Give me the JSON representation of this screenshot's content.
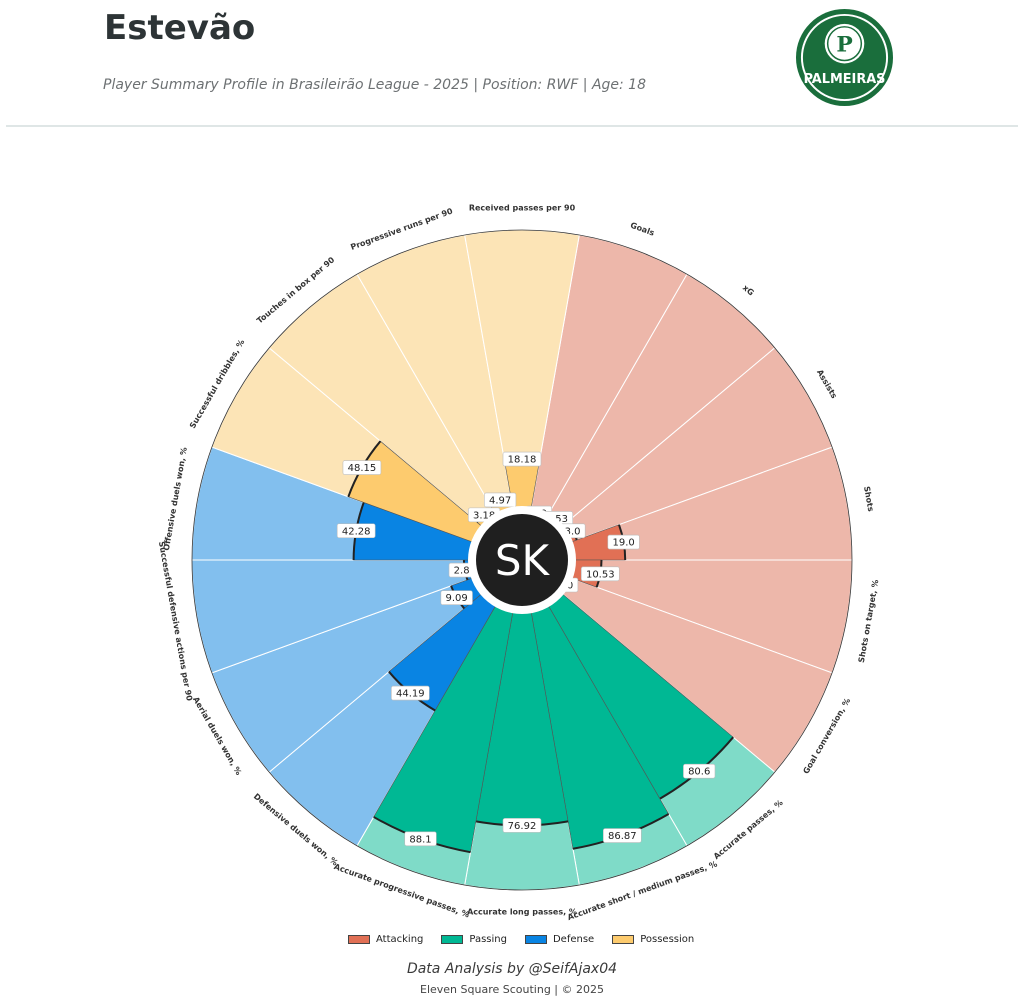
{
  "header": {
    "player_name": "Estevão",
    "subtitle": "Player Summary Profile in Brasileirão League - 2025 | Position: RWF | Age: 18"
  },
  "logo": {
    "name": "palmeiras-crest-icon",
    "text": "PALMEIRAS",
    "letter": "P",
    "color": "#1a6e3c"
  },
  "center_badge": {
    "text": "SK"
  },
  "chart_data": {
    "type": "polar-bar",
    "max_value": 100,
    "categories": [
      {
        "label": "Goals",
        "value": 0.0,
        "group": "Attacking"
      },
      {
        "label": "xG",
        "value": 1.53,
        "group": "Attacking"
      },
      {
        "label": "Assists",
        "value": 3.0,
        "group": "Attacking"
      },
      {
        "label": "Shots",
        "value": 19.0,
        "group": "Attacking"
      },
      {
        "label": "Shots on target, %",
        "value": 10.53,
        "group": "Attacking"
      },
      {
        "label": "Goal conversion, %",
        "value": 0.0,
        "group": "Attacking"
      },
      {
        "label": "Accurate passes, %",
        "value": 80.6,
        "group": "Passing"
      },
      {
        "label": "Accurate short / medium passes, %",
        "value": 86.87,
        "group": "Passing"
      },
      {
        "label": "Accurate long passes, %",
        "value": 76.92,
        "group": "Passing"
      },
      {
        "label": "Accurate progressive passes, %",
        "value": 88.1,
        "group": "Passing"
      },
      {
        "label": "Defensive duels won, %",
        "value": 44.19,
        "group": "Defense"
      },
      {
        "label": "Aerial duels won, %",
        "value": 9.09,
        "group": "Defense"
      },
      {
        "label": "Successful defensive actions per 90",
        "value": 2.88,
        "group": "Defense"
      },
      {
        "label": "Offensive duels won, %",
        "value": 42.28,
        "group": "Defense"
      },
      {
        "label": "Successful dribbles, %",
        "value": 48.15,
        "group": "Possession"
      },
      {
        "label": "Touches in box per 90",
        "value": 3.18,
        "group": "Possession"
      },
      {
        "label": "Progressive runs per 90",
        "value": 4.97,
        "group": "Possession"
      },
      {
        "label": "Received passes per 90",
        "value": 18.18,
        "group": "Possession"
      }
    ],
    "groups": [
      {
        "name": "Attacking",
        "color": "#e17055",
        "light": "#edb7aa"
      },
      {
        "name": "Passing",
        "color": "#00b894",
        "light": "#7fdbc8"
      },
      {
        "name": "Defense",
        "color": "#0984e3",
        "light": "#82bfee"
      },
      {
        "name": "Possession",
        "color": "#fdcb6e",
        "light": "#fce4b6"
      }
    ],
    "legend_position": "bottom"
  },
  "footer": {
    "credit": "Data Analysis by @SeifAjax04",
    "copyright": "Eleven Square Scouting | © 2025"
  }
}
